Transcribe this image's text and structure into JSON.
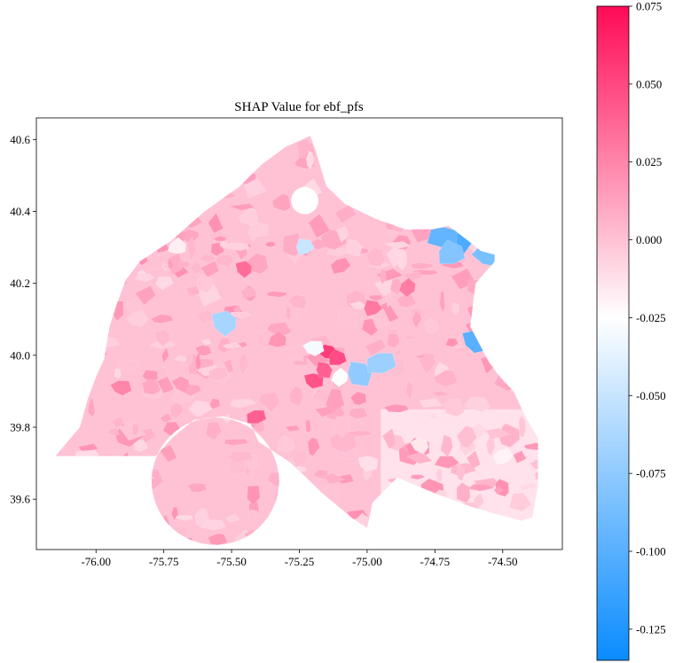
{
  "chart_data": {
    "type": "choropleth",
    "title": "SHAP Value for ebf_pfs",
    "xlabel": "",
    "ylabel": "",
    "xlim": [
      -76.22,
      -74.28
    ],
    "ylim": [
      39.46,
      40.66
    ],
    "x_ticks": [
      -76.0,
      -75.75,
      -75.5,
      -75.25,
      -75.0,
      -74.75,
      -74.5
    ],
    "x_tick_labels": [
      "-76.00",
      "-75.75",
      "-75.50",
      "-75.25",
      "-75.00",
      "-74.75",
      "-74.50"
    ],
    "y_ticks": [
      39.6,
      39.8,
      40.0,
      40.2,
      40.4,
      40.6
    ],
    "y_tick_labels": [
      "39.6",
      "39.8",
      "40.0",
      "40.2",
      "40.4",
      "40.6"
    ],
    "colorbar": {
      "vmin": -0.135,
      "vmax": 0.075,
      "ticks": [
        0.075,
        0.05,
        0.025,
        0.0,
        -0.025,
        -0.05,
        -0.075,
        -0.1,
        -0.125
      ],
      "tick_labels": [
        "0.075",
        "0.050",
        "0.025",
        "0.000",
        "-0.025",
        "-0.050",
        "-0.075",
        "-0.100",
        "-0.125"
      ],
      "colors": [
        "#0a8bff",
        "#ffffff",
        "#ff0a56"
      ]
    },
    "region_outline_lonlat": [
      [
        -76.15,
        39.72
      ],
      [
        -76.06,
        39.8
      ],
      [
        -76.03,
        39.88
      ],
      [
        -76.0,
        39.94
      ],
      [
        -75.97,
        39.99
      ],
      [
        -75.95,
        40.08
      ],
      [
        -75.92,
        40.15
      ],
      [
        -75.89,
        40.21
      ],
      [
        -75.84,
        40.26
      ],
      [
        -75.72,
        40.32
      ],
      [
        -75.6,
        40.4
      ],
      [
        -75.47,
        40.47
      ],
      [
        -75.39,
        40.53
      ],
      [
        -75.3,
        40.58
      ],
      [
        -75.21,
        40.61
      ],
      [
        -75.19,
        40.57
      ],
      [
        -75.15,
        40.47
      ],
      [
        -75.08,
        40.42
      ],
      [
        -74.97,
        40.38
      ],
      [
        -74.86,
        40.35
      ],
      [
        -74.76,
        40.35
      ],
      [
        -74.7,
        40.36
      ],
      [
        -74.63,
        40.32
      ],
      [
        -74.58,
        40.29
      ],
      [
        -74.53,
        40.28
      ],
      [
        -74.53,
        40.26
      ],
      [
        -74.6,
        40.2
      ],
      [
        -74.62,
        40.08
      ],
      [
        -74.55,
        39.98
      ],
      [
        -74.51,
        39.94
      ],
      [
        -74.46,
        39.9
      ],
      [
        -74.41,
        39.82
      ],
      [
        -74.37,
        39.77
      ],
      [
        -74.37,
        39.64
      ],
      [
        -74.39,
        39.55
      ],
      [
        -74.43,
        39.54
      ],
      [
        -74.53,
        39.56
      ],
      [
        -74.62,
        39.58
      ],
      [
        -74.76,
        39.62
      ],
      [
        -74.89,
        39.66
      ],
      [
        -74.98,
        39.59
      ],
      [
        -75.0,
        39.52
      ],
      [
        -75.06,
        39.55
      ],
      [
        -75.17,
        39.62
      ],
      [
        -75.28,
        39.7
      ],
      [
        -75.4,
        39.76
      ],
      [
        -75.43,
        39.81
      ],
      [
        -75.53,
        39.83
      ],
      [
        -75.64,
        39.82
      ],
      [
        -75.72,
        39.77
      ],
      [
        -75.78,
        39.72
      ]
    ],
    "hole_circle_lonlat": {
      "center": [
        -75.56,
        39.65
      ],
      "r_lon": 0.235
    },
    "hole_small_lonlat": {
      "center": [
        -75.23,
        40.43
      ],
      "r_lon": 0.05
    },
    "tract_values": [
      {
        "lon": -75.14,
        "lat": 40.01,
        "value": 0.055
      },
      {
        "lon": -75.11,
        "lat": 39.99,
        "value": 0.048
      },
      {
        "lon": -75.2,
        "lat": 39.93,
        "value": 0.045
      },
      {
        "lon": -75.16,
        "lat": 39.96,
        "value": 0.04
      },
      {
        "lon": -75.41,
        "lat": 39.83,
        "value": 0.04
      },
      {
        "lon": -75.45,
        "lat": 40.24,
        "value": 0.035
      },
      {
        "lon": -74.98,
        "lat": 40.13,
        "value": 0.03
      },
      {
        "lon": -75.91,
        "lat": 39.91,
        "value": 0.025
      },
      {
        "lon": -74.85,
        "lat": 40.19,
        "value": 0.028
      },
      {
        "lon": -75.1,
        "lat": 40.25,
        "value": 0.02
      },
      {
        "lon": -75.68,
        "lat": 39.92,
        "value": 0.015
      },
      {
        "lon": -75.33,
        "lat": 40.04,
        "value": 0.018
      },
      {
        "lon": -74.58,
        "lat": 40.34,
        "value": -0.13
      },
      {
        "lon": -74.66,
        "lat": 40.32,
        "value": -0.105
      },
      {
        "lon": -74.72,
        "lat": 40.33,
        "value": -0.095
      },
      {
        "lon": -74.55,
        "lat": 40.28,
        "value": -0.085
      },
      {
        "lon": -74.69,
        "lat": 40.28,
        "value": -0.08
      },
      {
        "lon": -74.6,
        "lat": 40.04,
        "value": -0.1
      },
      {
        "lon": -75.03,
        "lat": 39.95,
        "value": -0.075
      },
      {
        "lon": -74.95,
        "lat": 39.98,
        "value": -0.07
      },
      {
        "lon": -75.52,
        "lat": 40.09,
        "value": -0.065
      },
      {
        "lon": -75.23,
        "lat": 40.3,
        "value": -0.05
      },
      {
        "lon": -75.2,
        "lat": 40.02,
        "value": -0.03
      },
      {
        "lon": -75.1,
        "lat": 39.94,
        "value": -0.025
      },
      {
        "lon": -74.5,
        "lat": 39.72,
        "value": -0.02
      },
      {
        "lon": -74.8,
        "lat": 39.75,
        "value": -0.015
      },
      {
        "lon": -75.7,
        "lat": 40.3,
        "value": -0.018
      },
      {
        "lon": -75.85,
        "lat": 40.1,
        "value": -0.005
      },
      {
        "lon": -75.6,
        "lat": 40.2,
        "value": -0.002
      },
      {
        "lon": -75.4,
        "lat": 40.35,
        "value": -0.004
      },
      {
        "lon": -75.25,
        "lat": 40.15,
        "value": 0.005
      },
      {
        "lon": -75.3,
        "lat": 39.75,
        "value": -0.003
      },
      {
        "lon": -75.0,
        "lat": 39.7,
        "value": -0.012
      },
      {
        "lon": -75.05,
        "lat": 40.3,
        "value": -0.006
      },
      {
        "lon": -75.55,
        "lat": 39.95,
        "value": 0.002
      },
      {
        "lon": -75.75,
        "lat": 40.05,
        "value": 0.003
      }
    ]
  }
}
